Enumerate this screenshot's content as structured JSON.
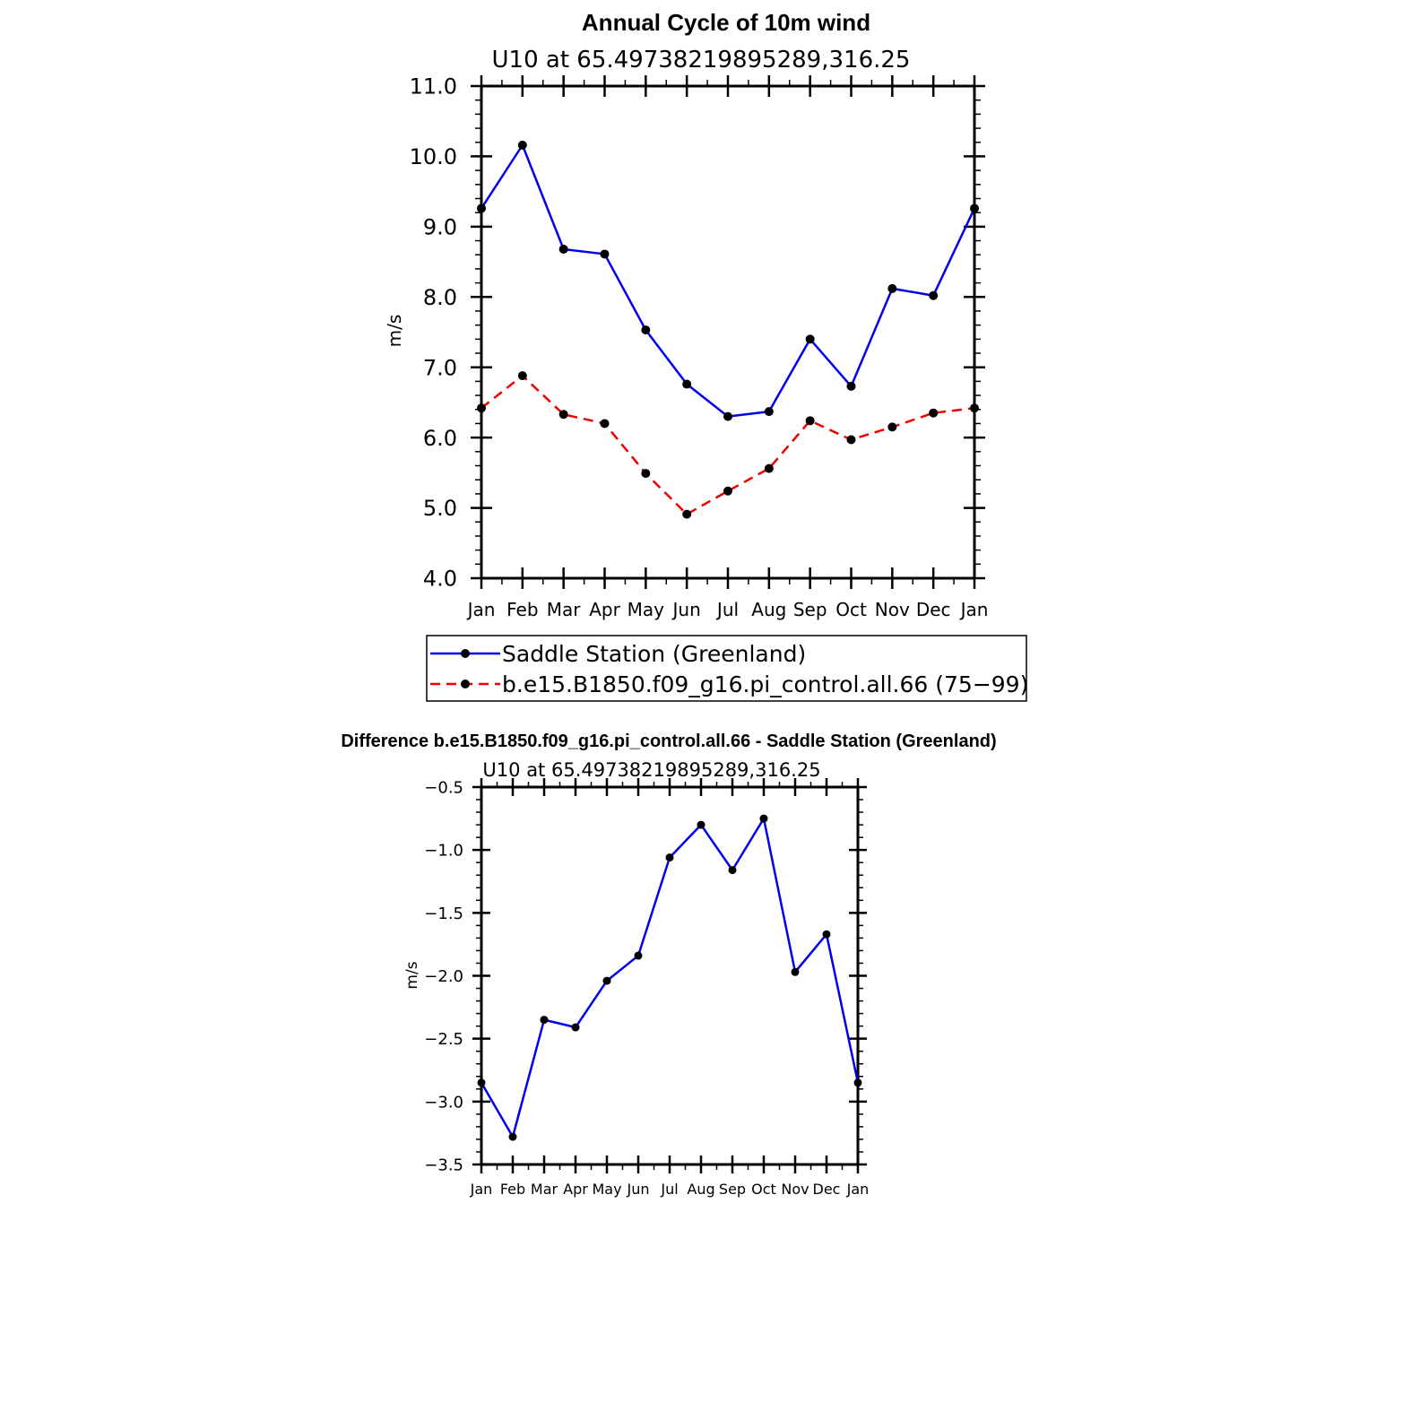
{
  "chart_data": [
    {
      "type": "line",
      "title": "Annual Cycle of 10m wind",
      "subtitle": "U10 at 65.49738219895289,316.25",
      "xlabel": "",
      "ylabel": "m/s",
      "categories": [
        "Jan",
        "Feb",
        "Mar",
        "Apr",
        "May",
        "Jun",
        "Jul",
        "Aug",
        "Sep",
        "Oct",
        "Nov",
        "Dec",
        "Jan"
      ],
      "ylim": [
        4.0,
        11.0
      ],
      "yticks": [
        "4.0",
        "5.0",
        "6.0",
        "7.0",
        "8.0",
        "9.0",
        "10.0",
        "11.0"
      ],
      "grid": false,
      "legend_position": "below",
      "series": [
        {
          "name": "Saddle Station (Greenland)",
          "color": "#0000ee",
          "dash": "solid",
          "values": [
            9.26,
            10.16,
            8.68,
            8.61,
            7.53,
            6.76,
            6.3,
            6.37,
            7.4,
            6.73,
            8.12,
            8.02,
            9.26
          ]
        },
        {
          "name": "b.e15.B1850.f09_g16.pi_control.all.66 (75−99)",
          "color": "#ee0000",
          "dash": "dashed",
          "values": [
            6.42,
            6.88,
            6.33,
            6.2,
            5.49,
            4.91,
            5.24,
            5.56,
            6.24,
            5.97,
            6.15,
            6.35,
            6.42
          ]
        }
      ]
    },
    {
      "type": "line",
      "title": "Difference b.e15.B1850.f09_g16.pi_control.all.66 - Saddle Station (Greenland)",
      "subtitle": "U10 at 65.49738219895289,316.25",
      "xlabel": "",
      "ylabel": "m/s",
      "categories": [
        "Jan",
        "Feb",
        "Mar",
        "Apr",
        "May",
        "Jun",
        "Jul",
        "Aug",
        "Sep",
        "Oct",
        "Nov",
        "Dec",
        "Jan"
      ],
      "ylim": [
        -3.5,
        -0.5
      ],
      "yticks": [
        "−3.5",
        "−3.0",
        "−2.5",
        "−2.0",
        "−1.5",
        "−1.0",
        "−0.5"
      ],
      "grid": false,
      "series": [
        {
          "name": "Difference",
          "color": "#0000ee",
          "dash": "solid",
          "values": [
            -2.85,
            -3.28,
            -2.35,
            -2.41,
            -2.04,
            -1.84,
            -1.06,
            -0.8,
            -1.16,
            -0.75,
            -1.97,
            -1.67,
            -2.85
          ]
        }
      ]
    }
  ]
}
